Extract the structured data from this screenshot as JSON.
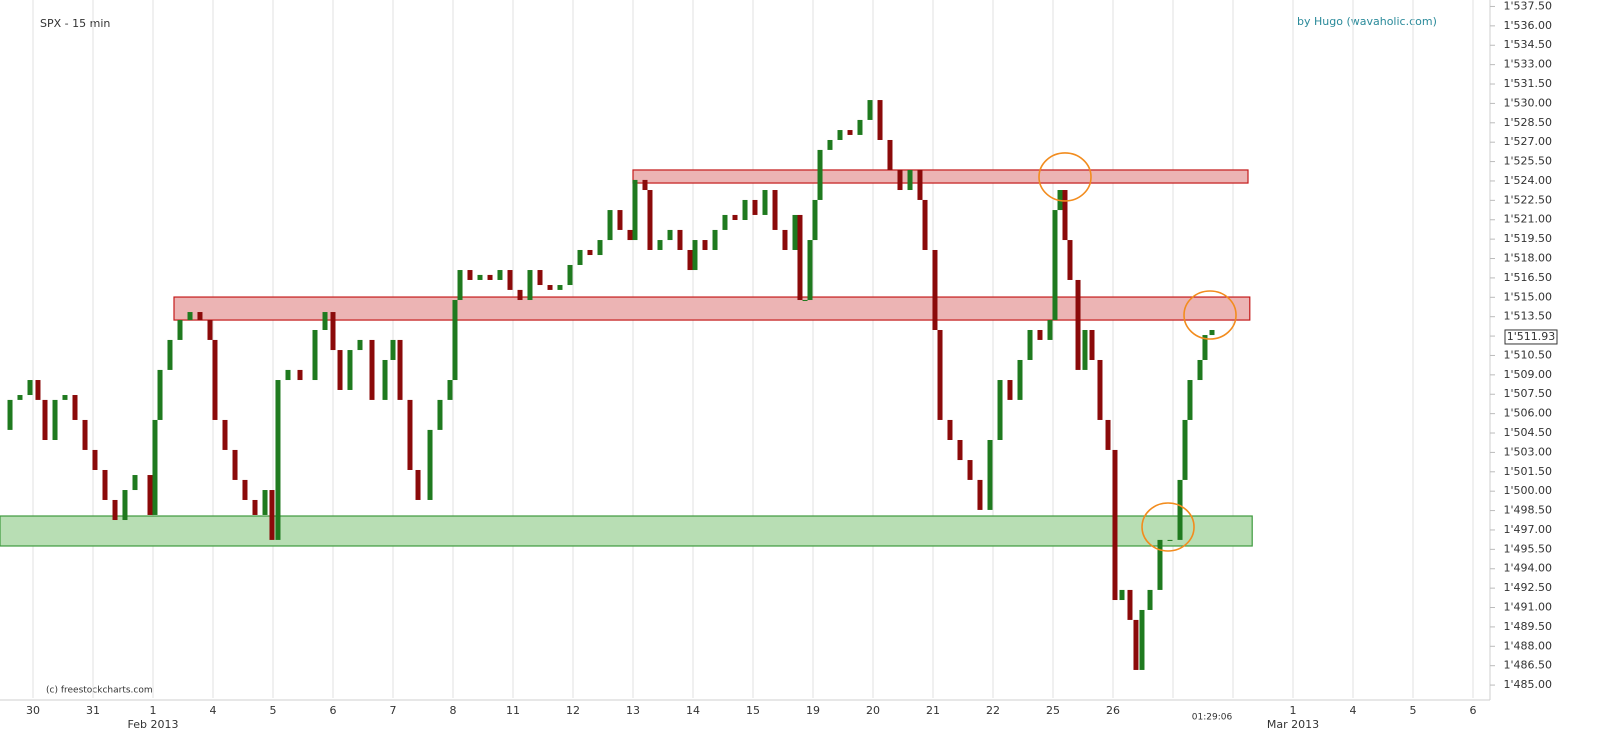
{
  "chart_data": {
    "type": "candlestick",
    "title": "SPX - 15 min",
    "author": "by Hugo (wavaholic.com)",
    "copyright": "(c) freestockcharts.com",
    "categories": [
      "30",
      "31",
      "1",
      "4",
      "5",
      "6",
      "7",
      "8",
      "11",
      "12",
      "13",
      "14",
      "15",
      "19",
      "20",
      "21",
      "22",
      "25",
      "26",
      null,
      null,
      "1",
      "4",
      "5",
      "6"
    ],
    "months": [
      "Feb 2013",
      "Mar 2013"
    ],
    "time_label": "01:29:06",
    "xlim": [
      -0.55,
      24.45
    ],
    "ylim": [
      1484,
      1538
    ],
    "yticks": [
      {
        "value": 1485,
        "label": "1'485.00"
      },
      {
        "value": 1486.5,
        "label": "1'486.50"
      },
      {
        "value": 1488,
        "label": "1'488.00"
      },
      {
        "value": 1489.5,
        "label": "1'489.50"
      },
      {
        "value": 1491,
        "label": "1'491.00"
      },
      {
        "value": 1492.5,
        "label": "1'492.50"
      },
      {
        "value": 1494,
        "label": "1'494.00"
      },
      {
        "value": 1495.5,
        "label": "1'495.50"
      },
      {
        "value": 1497,
        "label": "1'497.00"
      },
      {
        "value": 1498.5,
        "label": "1'498.50"
      },
      {
        "value": 1500,
        "label": "1'500.00"
      },
      {
        "value": 1501.5,
        "label": "1'501.50"
      },
      {
        "value": 1503,
        "label": "1'503.00"
      },
      {
        "value": 1504.5,
        "label": "1'504.50"
      },
      {
        "value": 1506,
        "label": "1'506.00"
      },
      {
        "value": 1507.5,
        "label": "1'507.50"
      },
      {
        "value": 1509,
        "label": "1'509.00"
      },
      {
        "value": 1510.5,
        "label": "1'510.50"
      },
      {
        "value": 1512,
        "label": "1'512.00"
      },
      {
        "value": 1513.5,
        "label": "1'513.50"
      },
      {
        "value": 1515,
        "label": "1'515.00"
      },
      {
        "value": 1516.5,
        "label": "1'516.50"
      },
      {
        "value": 1518,
        "label": "1'518.00"
      },
      {
        "value": 1519.5,
        "label": "1'519.50"
      },
      {
        "value": 1521,
        "label": "1'521.00"
      },
      {
        "value": 1522.5,
        "label": "1'522.50"
      },
      {
        "value": 1524,
        "label": "1'524.00"
      },
      {
        "value": 1525.5,
        "label": "1'525.50"
      },
      {
        "value": 1527,
        "label": "1'527.00"
      },
      {
        "value": 1528.5,
        "label": "1'528.50"
      },
      {
        "value": 1530,
        "label": "1'530.00"
      },
      {
        "value": 1531.5,
        "label": "1'531.50"
      },
      {
        "value": 1533,
        "label": "1'533.00"
      },
      {
        "value": 1534.5,
        "label": "1'534.50"
      },
      {
        "value": 1536,
        "label": "1'536.00"
      },
      {
        "value": 1537.5,
        "label": "1'537.50"
      }
    ],
    "last_price": {
      "value": 1511.93,
      "label": "1'511.93"
    },
    "up_color": "#1f7a1f",
    "down_color": "#8b0a0a",
    "series": [
      {
        "name": "SPX",
        "x": [
          -0.55,
          -0.383,
          -0.217,
          -0.05,
          0.083,
          0.2,
          0.367,
          0.533,
          0.7,
          0.867,
          1.033,
          1.2,
          1.367,
          1.533,
          1.7,
          1.95,
          2.033,
          2.117,
          2.283,
          2.45,
          2.617,
          2.783,
          2.95,
          3.033,
          3.2,
          3.367,
          3.533,
          3.7,
          3.867,
          3.983,
          4.083,
          4.25,
          4.45,
          4.7,
          4.867,
          5,
          5.117,
          5.283,
          5.45,
          5.65,
          5.867,
          6,
          6.117,
          6.283,
          6.417,
          6.617,
          6.783,
          6.95,
          7.033,
          7.117,
          7.283,
          7.45,
          7.617,
          7.783,
          7.95,
          8.117,
          8.283,
          8.45,
          8.617,
          8.783,
          8.95,
          9.117,
          9.283,
          9.45,
          9.617,
          9.783,
          9.95,
          10.033,
          10.2,
          10.283,
          10.45,
          10.617,
          10.783,
          10.95,
          11.033,
          11.2,
          11.367,
          11.533,
          11.7,
          11.867,
          12.033,
          12.2,
          12.367,
          12.533,
          12.7,
          12.783,
          12.867,
          12.95,
          13.033,
          13.117,
          13.283,
          13.45,
          13.617,
          13.783,
          13.95,
          14.117,
          14.283,
          14.45,
          14.617,
          14.783,
          14.867,
          15.033,
          15.117,
          15.283,
          15.45,
          15.617,
          15.783,
          15.95,
          16.117,
          16.283,
          16.45,
          16.617,
          16.783,
          16.95,
          17.033,
          17.117,
          17.2,
          17.283,
          17.417,
          17.533,
          17.65,
          17.783,
          17.917,
          18.033,
          18.15,
          18.283,
          18.383,
          18.483,
          18.617,
          18.783,
          18.95,
          19.117,
          19.2,
          19.283,
          19.45,
          19.533,
          19.65
        ],
        "values": [
          1504.74,
          1507.06,
          1507.44,
          1508.6,
          1507.06,
          1503.96,
          1507.06,
          1507.44,
          1505.51,
          1503.19,
          1501.64,
          1499.32,
          1497.77,
          1500.09,
          1501.25,
          1498.16,
          1505.51,
          1509.38,
          1511.7,
          1513.24,
          1513.86,
          1513.24,
          1511.7,
          1505.51,
          1503.19,
          1500.87,
          1499.32,
          1498.16,
          1500.09,
          1496.23,
          1508.6,
          1509.38,
          1508.6,
          1512.47,
          1513.86,
          1510.92,
          1507.83,
          1510.92,
          1511.7,
          1507.06,
          1510.15,
          1511.7,
          1507.06,
          1501.64,
          1499.32,
          1504.74,
          1507.06,
          1508.6,
          1514.79,
          1517.11,
          1516.34,
          1516.73,
          1516.34,
          1517.11,
          1515.57,
          1514.79,
          1517.11,
          1515.95,
          1515.57,
          1515.95,
          1517.5,
          1518.66,
          1518.27,
          1519.43,
          1521.75,
          1520.21,
          1519.43,
          1524.08,
          1523.3,
          1518.66,
          1519.43,
          1520.21,
          1518.66,
          1517.11,
          1519.43,
          1518.66,
          1520.21,
          1521.37,
          1520.98,
          1522.53,
          1521.37,
          1523.3,
          1520.21,
          1518.66,
          1521.37,
          1514.79,
          1514.79,
          1519.43,
          1522.53,
          1526.4,
          1527.17,
          1527.94,
          1527.56,
          1528.72,
          1530.26,
          1527.17,
          1524.85,
          1523.3,
          1524.85,
          1522.53,
          1518.66,
          1512.47,
          1505.51,
          1503.96,
          1502.41,
          1500.87,
          1498.55,
          1503.96,
          1508.6,
          1507.06,
          1510.15,
          1512.47,
          1511.7,
          1513.24,
          1521.75,
          1523.3,
          1519.43,
          1516.34,
          1509.38,
          1512.47,
          1510.15,
          1505.51,
          1503.19,
          1491.58,
          1492.36,
          1490.04,
          1486.17,
          1490.81,
          1492.36,
          1496.23,
          1496.23,
          1500.87,
          1505.51,
          1508.6,
          1510.15,
          1512.08,
          1512.47
        ]
      }
    ],
    "zones": [
      {
        "ylim": [
          1523.84,
          1524.85
        ],
        "xlim": [
          10,
          20.25
        ],
        "color": "#ebb0b0",
        "edge": "#c41a1a"
      },
      {
        "ylim": [
          1513.24,
          1515.02
        ],
        "xlim": [
          2.35,
          20.28
        ],
        "color": "#ebb0b0",
        "edge": "#c41a1a"
      },
      {
        "ylim": [
          1495.76,
          1498.08
        ],
        "xlim": [
          -0.55,
          20.32
        ],
        "color": "#b4dcb0",
        "edge": "#3d9a3d"
      }
    ],
    "highlight_color": "#f28c1e",
    "highlights": [
      {
        "x": 17.2,
        "y": 1524.31
      },
      {
        "x": 19.617,
        "y": 1513.63
      },
      {
        "x": 18.917,
        "y": 1497.23
      }
    ]
  }
}
